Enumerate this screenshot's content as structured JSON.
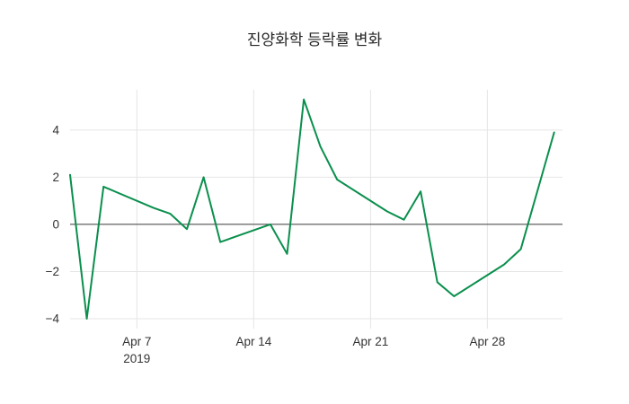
{
  "chart_data": {
    "type": "line",
    "title": "진양화학 등락률 변화",
    "series_name": "등락률",
    "x": [
      "2019-04-03",
      "2019-04-04",
      "2019-04-05",
      "2019-04-08",
      "2019-04-09",
      "2019-04-10",
      "2019-04-11",
      "2019-04-12",
      "2019-04-15",
      "2019-04-16",
      "2019-04-17",
      "2019-04-18",
      "2019-04-19",
      "2019-04-22",
      "2019-04-23",
      "2019-04-24",
      "2019-04-25",
      "2019-04-26",
      "2019-04-29",
      "2019-04-30",
      "2019-05-02"
    ],
    "values": [
      2.1,
      -4.0,
      1.6,
      0.7,
      0.45,
      -0.2,
      2.0,
      -0.75,
      0.0,
      -1.25,
      5.3,
      3.3,
      1.9,
      0.55,
      0.2,
      1.4,
      -2.45,
      -3.05,
      -1.7,
      -1.05,
      3.9
    ],
    "x_ticks": [
      {
        "date": "2019-04-07",
        "label": "Apr 7",
        "sublabel": "2019"
      },
      {
        "date": "2019-04-14",
        "label": "Apr 14",
        "sublabel": ""
      },
      {
        "date": "2019-04-21",
        "label": "Apr 21",
        "sublabel": ""
      },
      {
        "date": "2019-04-28",
        "label": "Apr 28",
        "sublabel": ""
      }
    ],
    "y_ticks": [
      {
        "value": 4,
        "label": "4"
      },
      {
        "value": 2,
        "label": "2"
      },
      {
        "value": 0,
        "label": "0"
      },
      {
        "value": -2,
        "label": "−2"
      },
      {
        "value": -4,
        "label": "−4"
      }
    ],
    "ylim": [
      -4.42,
      5.71
    ],
    "grid": true,
    "legend": false,
    "zeroline": true,
    "colors": {
      "line": "#0a8f4d",
      "grid": "#e5e5e5",
      "zeroline": "#3d3d3d",
      "text": "#333333",
      "title": "#262626",
      "background": "#ffffff"
    }
  }
}
